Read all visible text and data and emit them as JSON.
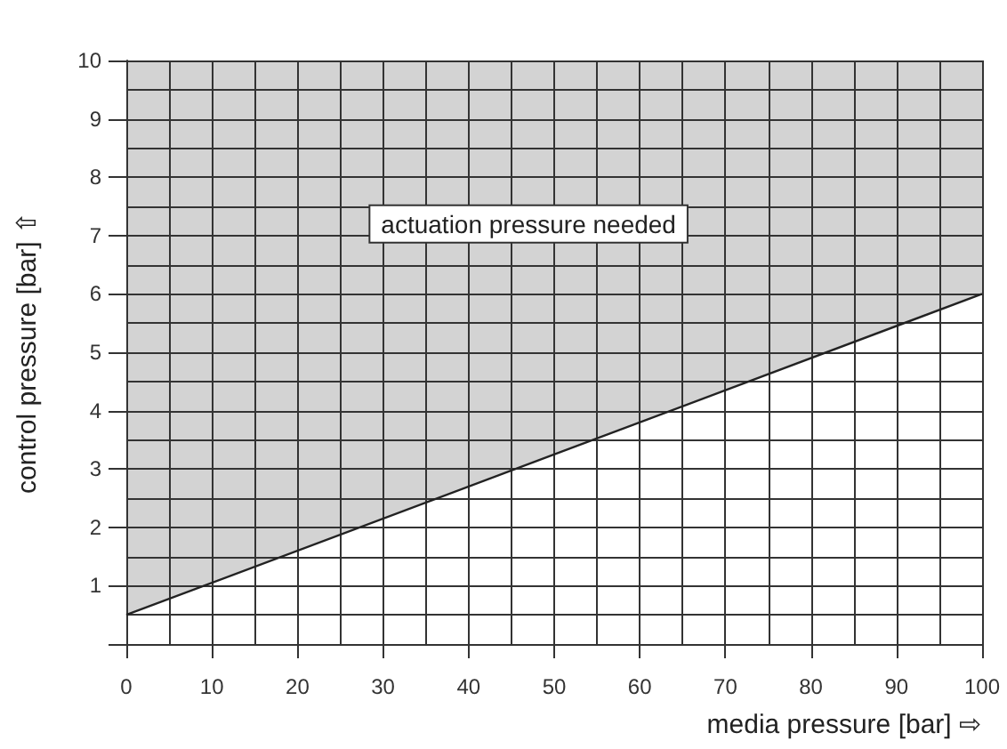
{
  "chart_data": {
    "type": "line",
    "xlabel": "media pressure [bar] ⇨",
    "ylabel": "control pressure [bar] ⇧",
    "annotations": [
      "actuation pressure needed"
    ],
    "x": [
      0,
      100
    ],
    "series": [
      {
        "color": "#222222",
        "values": [
          0.5,
          6
        ],
        "lower": [
          0.5,
          6
        ],
        "upper": [
          10,
          10
        ]
      }
    ],
    "xlim": [
      0,
      100
    ],
    "xticks": [
      0,
      10,
      20,
      30,
      40,
      50,
      60,
      70,
      80,
      90,
      100
    ],
    "ylim": [
      0,
      10
    ],
    "yticks": [
      {
        "value": 0,
        "label": null
      },
      1,
      2,
      3,
      4,
      5,
      6,
      7,
      8,
      9,
      10
    ],
    "grid": true,
    "marker": "none",
    "line_style": "solid"
  }
}
